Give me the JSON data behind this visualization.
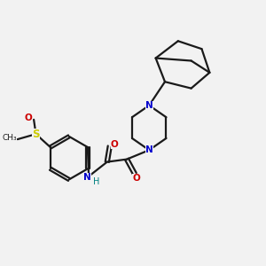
{
  "bg_color": "#f2f2f2",
  "bond_color": "#1a1a1a",
  "N_color": "#0000cc",
  "O_color": "#cc0000",
  "S_color": "#cccc00",
  "H_color": "#008080",
  "line_width": 1.6,
  "figsize": [
    3.0,
    3.0
  ],
  "dpi": 100,
  "xlim": [
    0,
    10
  ],
  "ylim": [
    0,
    10
  ]
}
